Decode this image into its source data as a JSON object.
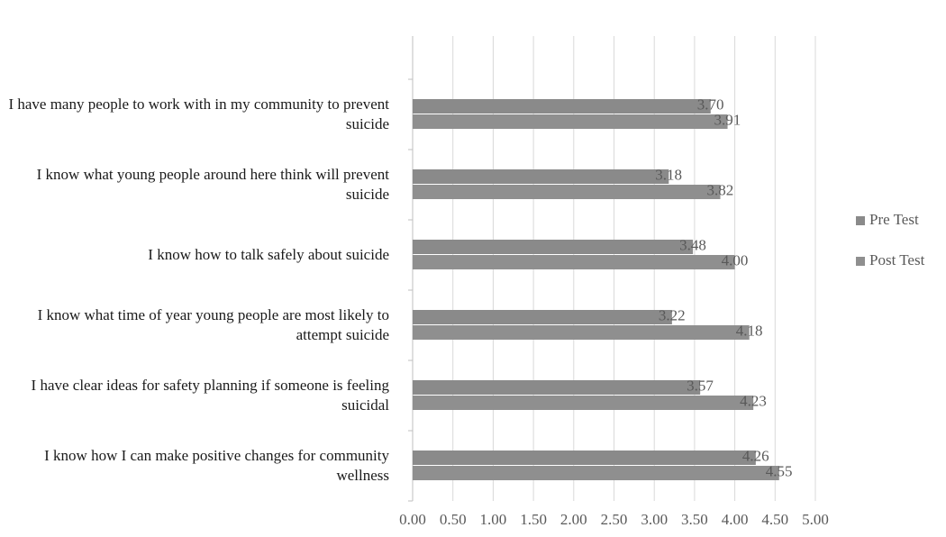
{
  "chart_data": {
    "type": "hbar",
    "categories": [
      "I have many people to work with in my community to prevent suicide",
      "I know what young people around here think will prevent suicide",
      "I know how to talk safely about suicide",
      "I know what time of year young people are most likely to attempt suicide",
      "I have clear ideas for safety planning if someone is feeling suicidal",
      "I know how I can make positive changes for community wellness"
    ],
    "series": [
      {
        "name": "Pre Test",
        "color": "#8a8a8a",
        "values": [
          3.7,
          3.18,
          3.48,
          3.22,
          3.57,
          4.26
        ],
        "value_labels": [
          "3.70",
          "3.18",
          "3.48",
          "3.22",
          "3.57",
          "4.26"
        ]
      },
      {
        "name": "Post Test",
        "color": "#8f8f8f",
        "values": [
          3.91,
          3.82,
          4.0,
          4.18,
          4.23,
          4.55
        ],
        "value_labels": [
          "3.91",
          "3.82",
          "4.00",
          "4.18",
          "4.23",
          "4.55"
        ]
      }
    ],
    "xlim": [
      0,
      5
    ],
    "xticks": [
      {
        "value": 0,
        "label": "0.00"
      },
      {
        "value": 0.5,
        "label": "0.50"
      },
      {
        "value": 1,
        "label": "1.00"
      },
      {
        "value": 1.5,
        "label": "1.50"
      },
      {
        "value": 2,
        "label": "2.00"
      },
      {
        "value": 2.5,
        "label": "2.50"
      },
      {
        "value": 3,
        "label": "3.00"
      },
      {
        "value": 3.5,
        "label": "3.50"
      },
      {
        "value": 4,
        "label": "4.00"
      },
      {
        "value": 4.5,
        "label": "4.50"
      },
      {
        "value": 5,
        "label": "5.00"
      }
    ],
    "grid": true,
    "legend": "right"
  }
}
